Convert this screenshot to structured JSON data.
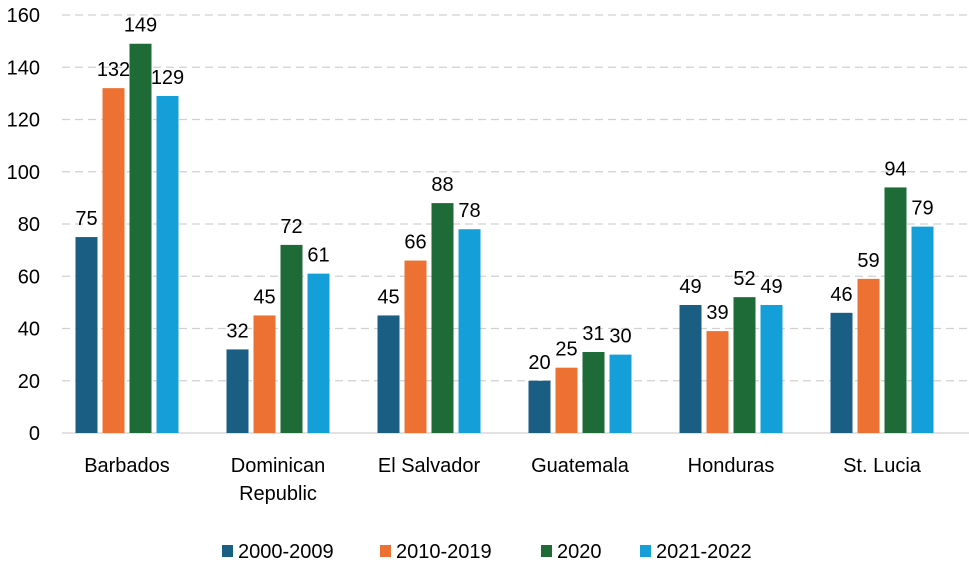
{
  "chart_data": {
    "type": "bar",
    "categories": [
      "Barbados",
      "Dominican Republic",
      "El Salvador",
      "Guatemala",
      "Honduras",
      "St. Lucia"
    ],
    "series": [
      {
        "name": "2000-2009",
        "color": "#1b5e84",
        "values": [
          75,
          32,
          45,
          20,
          49,
          46
        ]
      },
      {
        "name": "2010-2019",
        "color": "#ec7133",
        "values": [
          132,
          45,
          66,
          25,
          39,
          59
        ]
      },
      {
        "name": "2020",
        "color": "#1e6b38",
        "values": [
          149,
          72,
          88,
          31,
          52,
          94
        ]
      },
      {
        "name": "2021-2022",
        "color": "#149fd8",
        "values": [
          129,
          61,
          78,
          30,
          49,
          79
        ]
      }
    ],
    "yticks": [
      0,
      20,
      40,
      60,
      80,
      100,
      120,
      140,
      160
    ],
    "ylim": [
      0,
      160
    ],
    "grid": true,
    "grid_style": "dashed",
    "legend_placement": "bottom",
    "data_labels": true
  }
}
